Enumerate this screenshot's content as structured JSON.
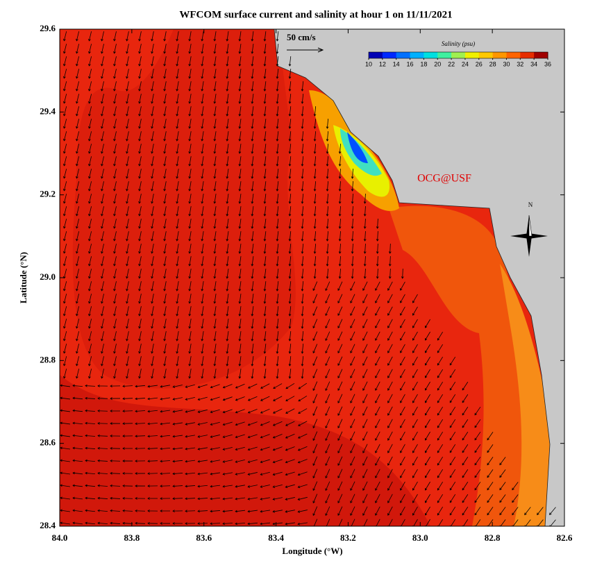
{
  "chart_data": {
    "type": "map",
    "title": "WFCOM surface current and salinity at hour 1 on 11/11/2021",
    "x_label": "Longitude (°W)",
    "y_label": "Latitude (°N)",
    "xlim": [
      84.0,
      82.6
    ],
    "ylim": [
      28.4,
      29.6
    ],
    "xticks": [
      {
        "value": 84.0,
        "label": "84.0"
      },
      {
        "value": 83.8,
        "label": "83.8"
      },
      {
        "value": 83.6,
        "label": "83.6"
      },
      {
        "value": 83.4,
        "label": "83.4"
      },
      {
        "value": 83.2,
        "label": "83.2"
      },
      {
        "value": 83.0,
        "label": "83.0"
      },
      {
        "value": 82.8,
        "label": "82.8"
      },
      {
        "value": 82.6,
        "label": "82.6"
      }
    ],
    "yticks": [
      {
        "value": 28.4,
        "label": "28.4"
      },
      {
        "value": 28.6,
        "label": "28.6"
      },
      {
        "value": 28.8,
        "label": "28.8"
      },
      {
        "value": 29.0,
        "label": "29.0"
      },
      {
        "value": 29.2,
        "label": "29.2"
      },
      {
        "value": 29.4,
        "label": "29.4"
      },
      {
        "value": 29.6,
        "label": "29.6"
      }
    ],
    "colorbar": {
      "title": "Salinity (psu)",
      "lim": [
        10,
        36
      ],
      "ticks": [
        10,
        12,
        14,
        16,
        18,
        20,
        22,
        24,
        26,
        28,
        30,
        32,
        34,
        36
      ],
      "colors": [
        "#0000b4",
        "#0028ff",
        "#0070ff",
        "#00b0ff",
        "#00e0e0",
        "#40f0a0",
        "#a0f050",
        "#f0f000",
        "#ffc800",
        "#ff9600",
        "#ff6400",
        "#e62d00",
        "#a00000"
      ]
    },
    "scale_label": "50 cm/s",
    "credit": "OCG@USF",
    "compass_label": "N"
  }
}
